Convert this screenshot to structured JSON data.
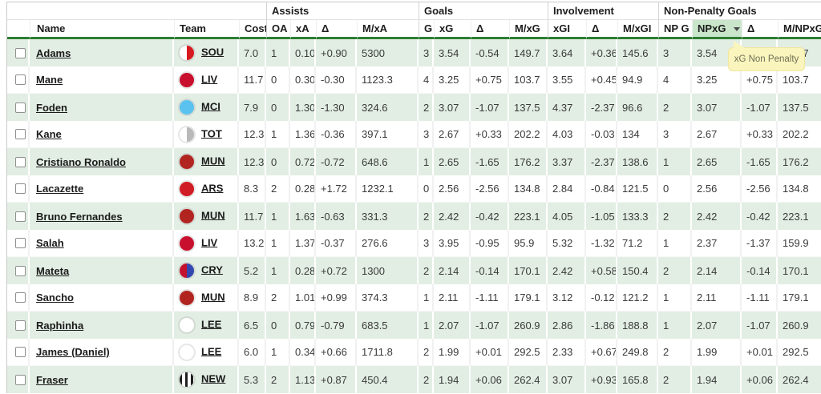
{
  "tooltip": {
    "text": "xG Non Penalty"
  },
  "colors": {
    "row_stripe_green": "#e2eee3",
    "header_underline_green": "#2f7d33",
    "sorted_column_highlight": "#c9e5ca",
    "tooltip_yellow": "#faf5bd"
  },
  "team_badges": {
    "SOU": {
      "style": "split",
      "colors": [
        "#ffffff",
        "#d71920"
      ]
    },
    "LIV": {
      "style": "solid",
      "colors": [
        "#c8102e"
      ]
    },
    "MCI": {
      "style": "solid",
      "colors": [
        "#5bc2f0"
      ]
    },
    "TOT": {
      "style": "split",
      "colors": [
        "#ffffff",
        "#b9b9b9"
      ]
    },
    "MUN": {
      "style": "solid",
      "colors": [
        "#b22420"
      ]
    },
    "ARS": {
      "style": "solid",
      "colors": [
        "#d01c24"
      ]
    },
    "CRY": {
      "style": "split",
      "colors": [
        "#c4122e",
        "#3347b0"
      ]
    },
    "LEE": {
      "style": "solid",
      "colors": [
        "#ffffff"
      ]
    },
    "NEW": {
      "style": "stripes",
      "colors": [
        "#ffffff",
        "#1f1f1f"
      ]
    }
  },
  "table": {
    "groups": [
      {
        "label": "Assists",
        "span": 4
      },
      {
        "label": "Goals",
        "span": 4
      },
      {
        "label": "Involvement",
        "span": 3
      },
      {
        "label": "Non-Penalty Goals",
        "span": 4
      }
    ],
    "columns": [
      {
        "key": "name",
        "label": "Name"
      },
      {
        "key": "team",
        "label": "Team"
      },
      {
        "key": "cost",
        "label": "Cost"
      },
      {
        "key": "oa",
        "label": "OA",
        "boundary": true
      },
      {
        "key": "xa",
        "label": "xA"
      },
      {
        "key": "delta_a",
        "label": "Δ"
      },
      {
        "key": "mxa",
        "label": "M/xA"
      },
      {
        "key": "g",
        "label": "G",
        "boundary": true
      },
      {
        "key": "xg",
        "label": "xG"
      },
      {
        "key": "delta_g",
        "label": "Δ"
      },
      {
        "key": "mxg",
        "label": "M/xG"
      },
      {
        "key": "xgi",
        "label": "xGI",
        "boundary": true
      },
      {
        "key": "delta_gi",
        "label": "Δ"
      },
      {
        "key": "mxgi",
        "label": "M/xGI"
      },
      {
        "key": "npg",
        "label": "NP G",
        "boundary": true
      },
      {
        "key": "npxg",
        "label": "NPxG",
        "sorted": true
      },
      {
        "key": "delta_np",
        "label": "Δ"
      },
      {
        "key": "mnpxg",
        "label": "M/NPxG"
      }
    ],
    "rows": [
      {
        "name": "Adams",
        "team": "SOU",
        "cost": "7.0",
        "oa": "1",
        "xa": "0.10",
        "delta_a": "+0.90",
        "mxa": "5300",
        "g": "3",
        "xg": "3.54",
        "delta_g": "-0.54",
        "mxg": "149.7",
        "xgi": "3.64",
        "delta_gi": "+0.36",
        "mxgi": "145.6",
        "npg": "3",
        "npxg": "3.54",
        "delta_np": "-0.54",
        "mnpxg": "149.7"
      },
      {
        "name": "Mane",
        "team": "LIV",
        "cost": "11.7",
        "oa": "0",
        "xa": "0.30",
        "delta_a": "-0.30",
        "mxa": "1123.3",
        "g": "4",
        "xg": "3.25",
        "delta_g": "+0.75",
        "mxg": "103.7",
        "xgi": "3.55",
        "delta_gi": "+0.45",
        "mxgi": "94.9",
        "npg": "4",
        "npxg": "3.25",
        "delta_np": "+0.75",
        "mnpxg": "103.7"
      },
      {
        "name": "Foden",
        "team": "MCI",
        "cost": "7.9",
        "oa": "0",
        "xa": "1.30",
        "delta_a": "-1.30",
        "mxa": "324.6",
        "g": "2",
        "xg": "3.07",
        "delta_g": "-1.07",
        "mxg": "137.5",
        "xgi": "4.37",
        "delta_gi": "-2.37",
        "mxgi": "96.6",
        "npg": "2",
        "npxg": "3.07",
        "delta_np": "-1.07",
        "mnpxg": "137.5"
      },
      {
        "name": "Kane",
        "team": "TOT",
        "cost": "12.3",
        "oa": "1",
        "xa": "1.36",
        "delta_a": "-0.36",
        "mxa": "397.1",
        "g": "3",
        "xg": "2.67",
        "delta_g": "+0.33",
        "mxg": "202.2",
        "xgi": "4.03",
        "delta_gi": "-0.03",
        "mxgi": "134",
        "npg": "3",
        "npxg": "2.67",
        "delta_np": "+0.33",
        "mnpxg": "202.2"
      },
      {
        "name": "Cristiano Ronaldo",
        "team": "MUN",
        "cost": "12.3",
        "oa": "0",
        "xa": "0.72",
        "delta_a": "-0.72",
        "mxa": "648.6",
        "g": "1",
        "xg": "2.65",
        "delta_g": "-1.65",
        "mxg": "176.2",
        "xgi": "3.37",
        "delta_gi": "-2.37",
        "mxgi": "138.6",
        "npg": "1",
        "npxg": "2.65",
        "delta_np": "-1.65",
        "mnpxg": "176.2"
      },
      {
        "name": "Lacazette",
        "team": "ARS",
        "cost": "8.3",
        "oa": "2",
        "xa": "0.28",
        "delta_a": "+1.72",
        "mxa": "1232.1",
        "g": "0",
        "xg": "2.56",
        "delta_g": "-2.56",
        "mxg": "134.8",
        "xgi": "2.84",
        "delta_gi": "-0.84",
        "mxgi": "121.5",
        "npg": "0",
        "npxg": "2.56",
        "delta_np": "-2.56",
        "mnpxg": "134.8"
      },
      {
        "name": "Bruno Fernandes",
        "team": "MUN",
        "cost": "11.7",
        "oa": "1",
        "xa": "1.63",
        "delta_a": "-0.63",
        "mxa": "331.3",
        "g": "2",
        "xg": "2.42",
        "delta_g": "-0.42",
        "mxg": "223.1",
        "xgi": "4.05",
        "delta_gi": "-1.05",
        "mxgi": "133.3",
        "npg": "2",
        "npxg": "2.42",
        "delta_np": "-0.42",
        "mnpxg": "223.1"
      },
      {
        "name": "Salah",
        "team": "LIV",
        "cost": "13.2",
        "oa": "1",
        "xa": "1.37",
        "delta_a": "-0.37",
        "mxa": "276.6",
        "g": "3",
        "xg": "3.95",
        "delta_g": "-0.95",
        "mxg": "95.9",
        "xgi": "5.32",
        "delta_gi": "-1.32",
        "mxgi": "71.2",
        "npg": "1",
        "npxg": "2.37",
        "delta_np": "-1.37",
        "mnpxg": "159.9"
      },
      {
        "name": "Mateta",
        "team": "CRY",
        "cost": "5.2",
        "oa": "1",
        "xa": "0.28",
        "delta_a": "+0.72",
        "mxa": "1300",
        "g": "2",
        "xg": "2.14",
        "delta_g": "-0.14",
        "mxg": "170.1",
        "xgi": "2.42",
        "delta_gi": "+0.58",
        "mxgi": "150.4",
        "npg": "2",
        "npxg": "2.14",
        "delta_np": "-0.14",
        "mnpxg": "170.1"
      },
      {
        "name": "Sancho",
        "team": "MUN",
        "cost": "8.9",
        "oa": "2",
        "xa": "1.01",
        "delta_a": "+0.99",
        "mxa": "374.3",
        "g": "1",
        "xg": "2.11",
        "delta_g": "-1.11",
        "mxg": "179.1",
        "xgi": "3.12",
        "delta_gi": "-0.12",
        "mxgi": "121.2",
        "npg": "1",
        "npxg": "2.11",
        "delta_np": "-1.11",
        "mnpxg": "179.1"
      },
      {
        "name": "Raphinha",
        "team": "LEE",
        "cost": "6.5",
        "oa": "0",
        "xa": "0.79",
        "delta_a": "-0.79",
        "mxa": "683.5",
        "g": "1",
        "xg": "2.07",
        "delta_g": "-1.07",
        "mxg": "260.9",
        "xgi": "2.86",
        "delta_gi": "-1.86",
        "mxgi": "188.8",
        "npg": "1",
        "npxg": "2.07",
        "delta_np": "-1.07",
        "mnpxg": "260.9"
      },
      {
        "name": "James (Daniel)",
        "team": "LEE",
        "cost": "6.0",
        "oa": "1",
        "xa": "0.34",
        "delta_a": "+0.66",
        "mxa": "1711.8",
        "g": "2",
        "xg": "1.99",
        "delta_g": "+0.01",
        "mxg": "292.5",
        "xgi": "2.33",
        "delta_gi": "+0.67",
        "mxgi": "249.8",
        "npg": "2",
        "npxg": "1.99",
        "delta_np": "+0.01",
        "mnpxg": "292.5"
      },
      {
        "name": "Fraser",
        "team": "NEW",
        "cost": "5.3",
        "oa": "2",
        "xa": "1.13",
        "delta_a": "+0.87",
        "mxa": "450.4",
        "g": "2",
        "xg": "1.94",
        "delta_g": "+0.06",
        "mxg": "262.4",
        "xgi": "3.07",
        "delta_gi": "+0.93",
        "mxgi": "165.8",
        "npg": "2",
        "npxg": "1.94",
        "delta_np": "+0.06",
        "mnpxg": "262.4"
      }
    ]
  }
}
